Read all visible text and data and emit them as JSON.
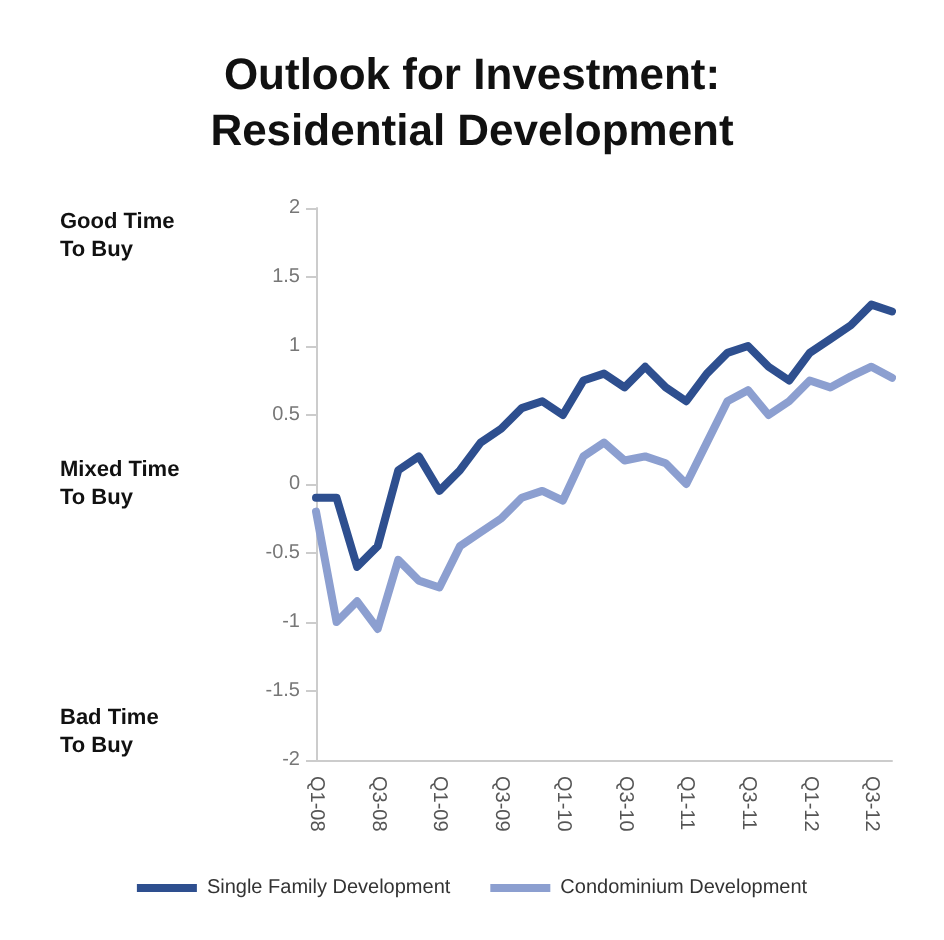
{
  "chart_data": {
    "type": "line",
    "title": "Outlook for Investment:\nResidential Development",
    "categories": [
      "Q1-08",
      null,
      null,
      "Q3-08",
      null,
      null,
      "Q1-09",
      null,
      null,
      "Q3-09",
      null,
      null,
      "Q1-10",
      null,
      null,
      "Q3-10",
      null,
      null,
      "Q1-11",
      null,
      null,
      "Q3-11",
      null,
      null,
      "Q1-12",
      null,
      null,
      "Q3-12",
      null
    ],
    "series": [
      {
        "name": "Single Family Development",
        "color": "#2e4f8f",
        "values": [
          -0.1,
          -0.1,
          -0.6,
          -0.45,
          0.1,
          0.2,
          -0.05,
          0.1,
          0.3,
          0.4,
          0.55,
          0.6,
          0.5,
          0.75,
          0.8,
          0.7,
          0.85,
          0.7,
          0.6,
          0.8,
          0.95,
          1.0,
          0.85,
          0.75,
          0.95,
          1.05,
          1.15,
          1.3,
          1.25
        ]
      },
      {
        "name": "Condominium Development",
        "color": "#8c9fd0",
        "values": [
          -0.2,
          -1.0,
          -0.85,
          -1.05,
          -0.55,
          -0.7,
          -0.75,
          -0.45,
          -0.35,
          -0.25,
          -0.1,
          -0.05,
          -0.12,
          0.2,
          0.3,
          0.17,
          0.2,
          0.15,
          0.0,
          0.3,
          0.6,
          0.68,
          0.5,
          0.6,
          0.75,
          0.7,
          0.78,
          0.85,
          0.77
        ]
      }
    ],
    "ylim": [
      -2,
      2
    ],
    "yticks": [
      -2,
      -1.5,
      -1,
      -0.5,
      0,
      0.5,
      1,
      1.5,
      2
    ],
    "annotations": [
      "Good Time\nTo Buy",
      "Mixed Time\nTo Buy",
      "Bad Time\nTo Buy"
    ],
    "legend": "bottom",
    "grid": false,
    "marker": "none",
    "line_style": "solid"
  }
}
